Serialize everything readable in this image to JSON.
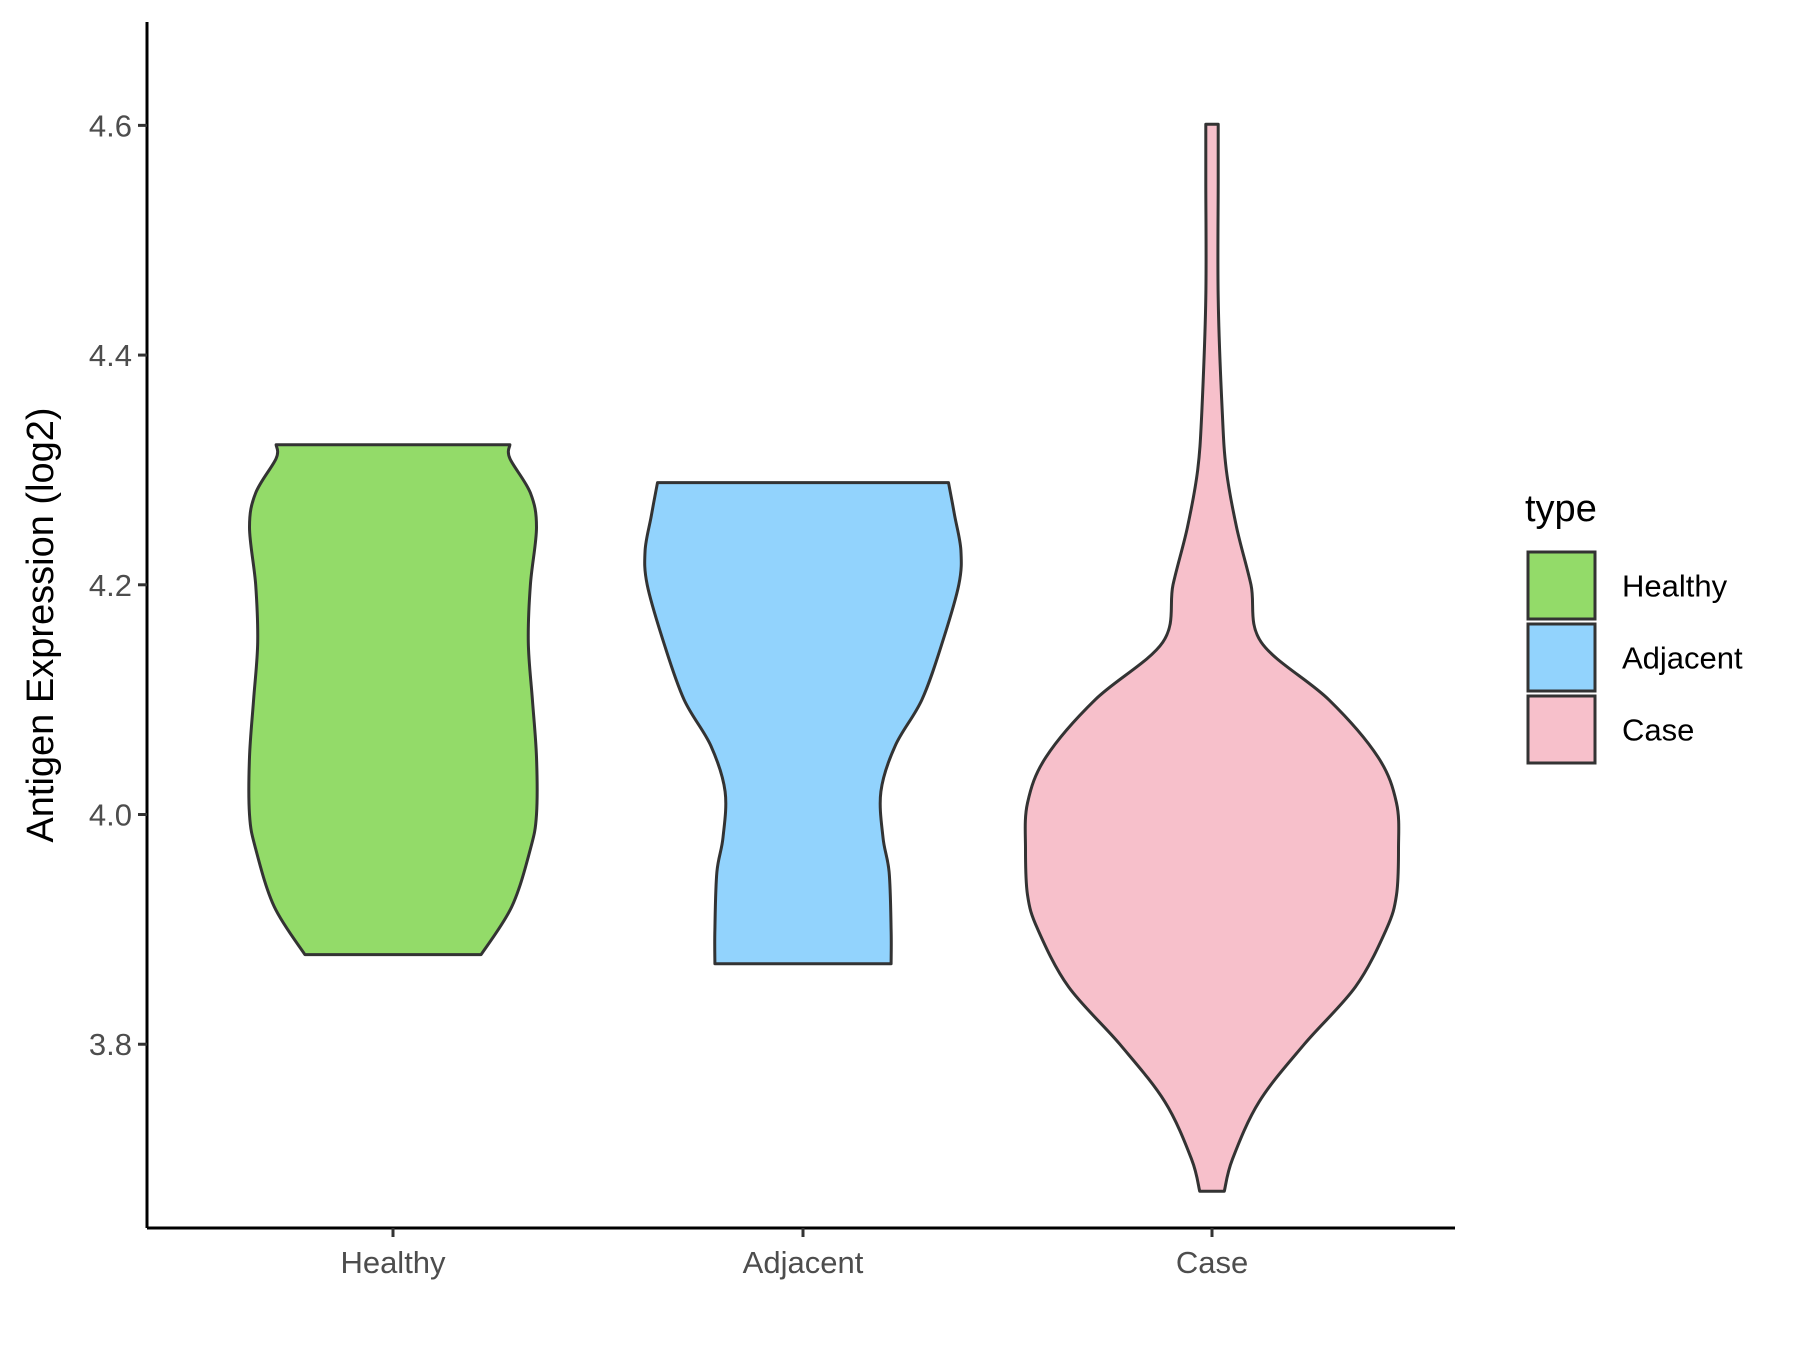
{
  "chart_data": {
    "type": "violin",
    "title": "",
    "xlabel": "",
    "ylabel": "Antigen Expression (log2)",
    "ylim": [
      3.64,
      4.69
    ],
    "yticks": [
      3.8,
      4.0,
      4.2,
      4.4,
      4.6
    ],
    "ytick_labels": [
      "3.8",
      "4.0",
      "4.2",
      "4.4",
      "4.6"
    ],
    "categories": [
      "Healthy",
      "Adjacent",
      "Case"
    ],
    "legend": {
      "title": "type",
      "position": "right",
      "entries": [
        "Healthy",
        "Adjacent",
        "Case"
      ]
    },
    "grid": false,
    "series": [
      {
        "name": "Healthy",
        "color": "#93DB69",
        "min": 3.878,
        "max": 4.322,
        "density_profile": [
          [
            3.878,
            0.43
          ],
          [
            3.92,
            0.58
          ],
          [
            3.97,
            0.67
          ],
          [
            4.0,
            0.7
          ],
          [
            4.05,
            0.7
          ],
          [
            4.1,
            0.68
          ],
          [
            4.15,
            0.66
          ],
          [
            4.2,
            0.67
          ],
          [
            4.25,
            0.7
          ],
          [
            4.28,
            0.67
          ],
          [
            4.31,
            0.57
          ],
          [
            4.322,
            0.57
          ]
        ]
      },
      {
        "name": "Adjacent",
        "color": "#92D3FD",
        "min": 3.87,
        "max": 4.289,
        "density_profile": [
          [
            3.87,
            0.43
          ],
          [
            3.9,
            0.43
          ],
          [
            3.95,
            0.42
          ],
          [
            3.98,
            0.39
          ],
          [
            4.02,
            0.38
          ],
          [
            4.06,
            0.45
          ],
          [
            4.1,
            0.58
          ],
          [
            4.15,
            0.68
          ],
          [
            4.2,
            0.76
          ],
          [
            4.23,
            0.77
          ],
          [
            4.26,
            0.74
          ],
          [
            4.289,
            0.71
          ]
        ]
      },
      {
        "name": "Case",
        "color": "#F7C0CB",
        "min": 3.672,
        "max": 4.601,
        "density_profile": [
          [
            3.672,
            0.06
          ],
          [
            3.7,
            0.1
          ],
          [
            3.75,
            0.23
          ],
          [
            3.8,
            0.45
          ],
          [
            3.85,
            0.7
          ],
          [
            3.9,
            0.85
          ],
          [
            3.93,
            0.9
          ],
          [
            3.97,
            0.91
          ],
          [
            4.01,
            0.9
          ],
          [
            4.05,
            0.81
          ],
          [
            4.1,
            0.57
          ],
          [
            4.15,
            0.24
          ],
          [
            4.2,
            0.19
          ],
          [
            4.25,
            0.12
          ],
          [
            4.3,
            0.07
          ],
          [
            4.35,
            0.05
          ],
          [
            4.45,
            0.03
          ],
          [
            4.55,
            0.03
          ],
          [
            4.601,
            0.03
          ]
        ]
      }
    ]
  }
}
